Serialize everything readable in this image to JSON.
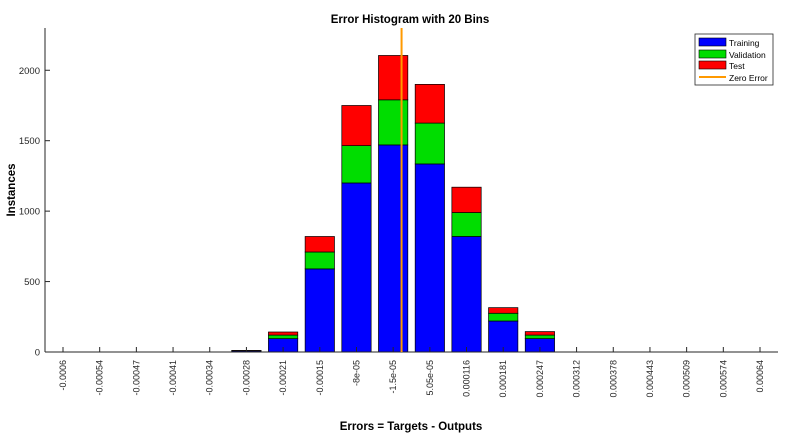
{
  "chart_data": {
    "type": "bar",
    "stacked": true,
    "title": "Error Histogram with 20 Bins",
    "xlabel": "Errors = Targets - Outputs",
    "ylabel": "Instances",
    "categories": [
      "-0.0006",
      "-0.00054",
      "-0.00047",
      "-0.00041",
      "-0.00034",
      "-0.00028",
      "-0.00021",
      "-0.00015",
      "-8e-05",
      "-1.5e-05",
      "5.05e-05",
      "0.000116",
      "0.000181",
      "0.000247",
      "0.000312",
      "0.000378",
      "0.000443",
      "0.000509",
      "0.000574",
      "0.00064"
    ],
    "series": [
      {
        "name": "Training",
        "color": "#0000ff",
        "values": [
          0,
          0,
          0,
          0,
          0,
          8,
          95,
          590,
          1200,
          1470,
          1335,
          820,
          220,
          95,
          0,
          0,
          0,
          0,
          0,
          0
        ]
      },
      {
        "name": "Validation",
        "color": "#00dd00",
        "values": [
          0,
          0,
          0,
          0,
          0,
          2,
          25,
          120,
          265,
          320,
          290,
          170,
          55,
          25,
          0,
          0,
          0,
          0,
          0,
          0
        ]
      },
      {
        "name": "Test",
        "color": "#ff0000",
        "values": [
          0,
          0,
          0,
          0,
          0,
          1,
          22,
          110,
          285,
          315,
          275,
          180,
          40,
          25,
          0,
          0,
          0,
          0,
          0,
          0
        ]
      }
    ],
    "reference_line": {
      "name": "Zero Error",
      "x_value": 0,
      "color": "#ff9900"
    },
    "ylim": [
      0,
      2300
    ],
    "yticks": [
      0,
      500,
      1000,
      1500,
      2000
    ],
    "legend_position": "top-right",
    "grid": false
  }
}
